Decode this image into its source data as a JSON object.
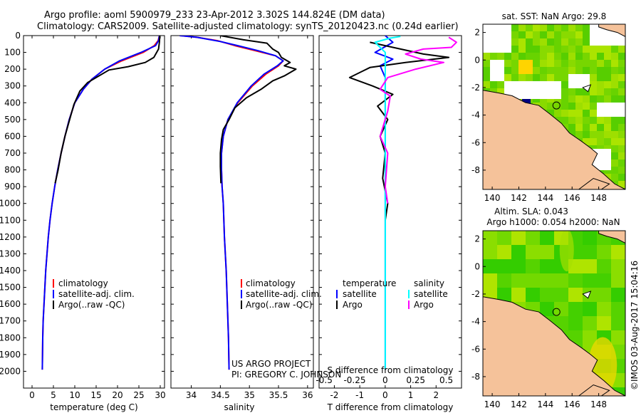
{
  "title_line1": "Argo profile: aoml 5900979_233 23-Apr-2012 3.302S 144.824E (DM data)",
  "title_line2": "Climatology: CARS2009. Satellite-adjusted climatology: synTS_20120423.nc (0.24d earlier)",
  "sst_map_title": "sat. SST: NaN Argo: 29.8",
  "sla_map_title1": "Altim. SLA: 0.043",
  "sla_map_title2": "Argo h1000: 0.054 h2000: NaN",
  "side_stamp": "©IMOS 03-Aug-2017 15:04:16",
  "credit_line1": "US ARGO PROJECT",
  "credit_line2": "PI: GREGORY C. JOHNSON",
  "colors": {
    "climatology": "#ff0000",
    "satellite": "#0000ff",
    "argo": "#000000",
    "salinity_satellite": "#00ffff",
    "salinity_argo": "#ff00ff",
    "land": "#f5c29a",
    "sea": "#5cd000"
  },
  "chart_data": [
    {
      "type": "line",
      "id": "temperature",
      "xlabel": "temperature (deg C)",
      "ylabel": "",
      "xlim": [
        -2,
        31
      ],
      "ylim": [
        2100,
        0
      ],
      "x_ticks": [
        0,
        5,
        10,
        15,
        20,
        25,
        30
      ],
      "y_ticks": [
        0,
        100,
        200,
        300,
        400,
        500,
        600,
        700,
        800,
        900,
        1000,
        1100,
        1200,
        1300,
        1400,
        1500,
        1600,
        1700,
        1800,
        1900,
        2000
      ],
      "legend": [
        "climatology",
        "satellite-adj. clim.",
        "Argo(..raw -QC)"
      ],
      "series": [
        {
          "name": "climatology",
          "color": "#ff0000",
          "points": [
            [
              29.8,
              0
            ],
            [
              29.5,
              30
            ],
            [
              28.6,
              60
            ],
            [
              26,
              100
            ],
            [
              21,
              150
            ],
            [
              17,
              200
            ],
            [
              14,
              260
            ],
            [
              12,
              320
            ],
            [
              10,
              400
            ],
            [
              8.7,
              500
            ],
            [
              7.7,
              600
            ],
            [
              6.8,
              700
            ],
            [
              6,
              800
            ],
            [
              5.3,
              900
            ],
            [
              4.7,
              1000
            ],
            [
              4.2,
              1100
            ],
            [
              3.8,
              1200
            ],
            [
              3.5,
              1300
            ],
            [
              3.2,
              1400
            ],
            [
              3,
              1500
            ],
            [
              2.8,
              1600
            ],
            [
              2.6,
              1700
            ],
            [
              2.5,
              1800
            ],
            [
              2.45,
              1900
            ],
            [
              2.4,
              1990
            ]
          ]
        },
        {
          "name": "satellite-adj. clim.",
          "color": "#0000ff",
          "points": [
            [
              29.8,
              0
            ],
            [
              29.6,
              30
            ],
            [
              28.9,
              60
            ],
            [
              25.5,
              100
            ],
            [
              20.5,
              150
            ],
            [
              17,
              200
            ],
            [
              14,
              260
            ],
            [
              12,
              320
            ],
            [
              10,
              400
            ],
            [
              8.7,
              500
            ],
            [
              7.7,
              600
            ],
            [
              6.8,
              700
            ],
            [
              6,
              800
            ],
            [
              5.3,
              900
            ],
            [
              4.7,
              1000
            ],
            [
              4.2,
              1100
            ],
            [
              3.8,
              1200
            ],
            [
              3.5,
              1300
            ],
            [
              3.2,
              1400
            ],
            [
              3,
              1500
            ],
            [
              2.8,
              1600
            ],
            [
              2.6,
              1700
            ],
            [
              2.5,
              1800
            ],
            [
              2.45,
              1900
            ],
            [
              2.4,
              1990
            ]
          ]
        },
        {
          "name": "Argo(..raw -QC)",
          "color": "#000000",
          "points": [
            [
              29.9,
              0
            ],
            [
              29.8,
              40
            ],
            [
              29.6,
              80
            ],
            [
              28.5,
              130
            ],
            [
              26.5,
              160
            ],
            [
              22.5,
              185
            ],
            [
              18,
              205
            ],
            [
              15,
              250
            ],
            [
              13,
              280
            ],
            [
              11.2,
              330
            ],
            [
              9.8,
              410
            ],
            [
              8.8,
              500
            ],
            [
              7.7,
              600
            ],
            [
              6.8,
              700
            ],
            [
              6.1,
              800
            ],
            [
              5.4,
              880
            ]
          ]
        }
      ]
    },
    {
      "type": "line",
      "id": "salinity",
      "xlabel": "salinity",
      "ylabel": "",
      "xlim": [
        33.65,
        36.1
      ],
      "ylim": [
        2100,
        0
      ],
      "x_ticks": [
        34,
        34.5,
        35,
        35.5,
        36
      ],
      "legend": [
        "climatology",
        "satellite-adj. clim.",
        "Argo(..raw -QC)"
      ],
      "series": [
        {
          "name": "climatology",
          "color": "#ff0000",
          "points": [
            [
              33.8,
              0
            ],
            [
              34.1,
              10
            ],
            [
              34.45,
              30
            ],
            [
              34.75,
              60
            ],
            [
              35.1,
              90
            ],
            [
              35.45,
              120
            ],
            [
              35.58,
              150
            ],
            [
              35.5,
              180
            ],
            [
              35.28,
              230
            ],
            [
              35.05,
              300
            ],
            [
              34.8,
              400
            ],
            [
              34.63,
              500
            ],
            [
              34.55,
              600
            ],
            [
              34.52,
              700
            ],
            [
              34.52,
              800
            ],
            [
              34.53,
              900
            ],
            [
              34.55,
              1000
            ],
            [
              34.57,
              1200
            ],
            [
              34.6,
              1400
            ],
            [
              34.62,
              1600
            ],
            [
              34.64,
              1800
            ],
            [
              34.65,
              1990
            ]
          ]
        },
        {
          "name": "satellite-adj. clim.",
          "color": "#0000ff",
          "points": [
            [
              33.8,
              0
            ],
            [
              34.1,
              10
            ],
            [
              34.5,
              35
            ],
            [
              34.8,
              60
            ],
            [
              35.15,
              90
            ],
            [
              35.45,
              120
            ],
            [
              35.58,
              150
            ],
            [
              35.48,
              180
            ],
            [
              35.25,
              230
            ],
            [
              35.03,
              300
            ],
            [
              34.79,
              400
            ],
            [
              34.63,
              500
            ],
            [
              34.55,
              600
            ],
            [
              34.52,
              700
            ],
            [
              34.52,
              800
            ],
            [
              34.53,
              900
            ],
            [
              34.55,
              1000
            ],
            [
              34.57,
              1200
            ],
            [
              34.6,
              1400
            ],
            [
              34.62,
              1600
            ],
            [
              34.64,
              1800
            ],
            [
              34.65,
              1990
            ]
          ]
        },
        {
          "name": "Argo(..raw -QC)",
          "color": "#000000",
          "points": [
            [
              34.5,
              0
            ],
            [
              34.9,
              25
            ],
            [
              35.3,
              45
            ],
            [
              35.4,
              80
            ],
            [
              35.5,
              100
            ],
            [
              35.55,
              130
            ],
            [
              35.7,
              160
            ],
            [
              35.6,
              180
            ],
            [
              35.8,
              200
            ],
            [
              35.6,
              240
            ],
            [
              35.4,
              270
            ],
            [
              35.2,
              320
            ],
            [
              34.95,
              370
            ],
            [
              34.75,
              430
            ],
            [
              34.65,
              500
            ],
            [
              34.55,
              560
            ],
            [
              34.52,
              620
            ],
            [
              34.5,
              700
            ],
            [
              34.5,
              780
            ],
            [
              34.51,
              880
            ]
          ]
        }
      ]
    },
    {
      "type": "line",
      "id": "differences",
      "xlabel": "T difference from climatology",
      "xlabel2": "S difference from climatology",
      "ylabel": "",
      "xlim": [
        -2.6,
        3
      ],
      "ylim": [
        2100,
        0
      ],
      "x_ticks": [
        "-2",
        "-1",
        "0",
        "1",
        "2"
      ],
      "x2_ticks": [
        "-0.5",
        "-0.25",
        "0",
        "0.25",
        "0.5"
      ],
      "legend_temperature": [
        "temperature",
        "satellite",
        "Argo"
      ],
      "legend_salinity": [
        "salinity",
        "satellite",
        "Argo"
      ],
      "series": [
        {
          "name": "satellite",
          "group": "temperature",
          "color": "#0000ff",
          "points": [
            [
              0,
              0
            ],
            [
              0.3,
              40
            ],
            [
              -0.4,
              100
            ],
            [
              0.3,
              140
            ],
            [
              -0.2,
              180
            ],
            [
              0,
              250
            ],
            [
              0,
              400
            ],
            [
              0,
              700
            ],
            [
              0,
              1990
            ]
          ]
        },
        {
          "name": "Argo",
          "group": "temperature",
          "color": "#000000",
          "points": [
            [
              -0.6,
              40
            ],
            [
              0.3,
              70
            ],
            [
              1.5,
              110
            ],
            [
              2.5,
              130
            ],
            [
              0.8,
              160
            ],
            [
              -0.6,
              190
            ],
            [
              -1.4,
              250
            ],
            [
              -0.5,
              300
            ],
            [
              0.3,
              350
            ],
            [
              -0.3,
              420
            ],
            [
              0.1,
              500
            ],
            [
              -0.2,
              600
            ],
            [
              0,
              700
            ],
            [
              -0.1,
              850
            ],
            [
              0.1,
              1000
            ],
            [
              0,
              1100
            ]
          ]
        },
        {
          "name": "satellite",
          "group": "salinity",
          "color": "#00ffff",
          "points": [
            [
              0.6,
              5
            ],
            [
              0.2,
              15
            ],
            [
              -0.4,
              40
            ],
            [
              -0.2,
              70
            ],
            [
              0,
              100
            ],
            [
              0,
              200
            ],
            [
              0,
              500
            ],
            [
              0,
              1000
            ],
            [
              0,
              1990
            ]
          ]
        },
        {
          "name": "Argo",
          "group": "salinity",
          "color": "#ff00ff",
          "points": [
            [
              2.5,
              10
            ],
            [
              2.8,
              40
            ],
            [
              2.6,
              70
            ],
            [
              1.5,
              80
            ],
            [
              0.8,
              110
            ],
            [
              1.4,
              140
            ],
            [
              2.3,
              160
            ],
            [
              1.2,
              200
            ],
            [
              0.1,
              250
            ],
            [
              -0.2,
              320
            ],
            [
              0.2,
              360
            ],
            [
              0.1,
              450
            ],
            [
              -0.2,
              600
            ],
            [
              0.1,
              700
            ],
            [
              0,
              900
            ],
            [
              0.1,
              1000
            ]
          ]
        }
      ]
    },
    {
      "type": "heatmap",
      "id": "sst_map",
      "title": "sat. SST: NaN Argo: 29.8",
      "x_ticks": [
        140,
        142,
        144,
        146,
        148
      ],
      "y_ticks": [
        2,
        0,
        -2,
        -4,
        -6,
        -8
      ],
      "argo_position": [
        144.824,
        -3.302
      ]
    },
    {
      "type": "heatmap",
      "id": "sla_map",
      "title": "Altim. SLA: 0.043",
      "subtitle": "Argo h1000: 0.054 h2000: NaN",
      "x_ticks": [
        140,
        142,
        144,
        146,
        148
      ],
      "y_ticks": [
        2,
        0,
        -2,
        -4,
        -6,
        -8
      ],
      "argo_position": [
        144.824,
        -3.302
      ]
    }
  ]
}
